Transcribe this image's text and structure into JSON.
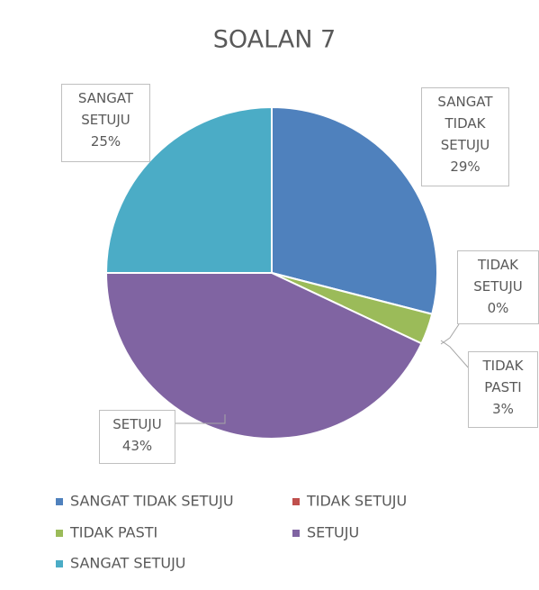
{
  "chart_data": {
    "type": "pie",
    "title": "SOALAN 7",
    "categories": [
      "SANGAT TIDAK SETUJU",
      "TIDAK SETUJU",
      "TIDAK PASTI",
      "SETUJU",
      "SANGAT SETUJU"
    ],
    "values": [
      29,
      0,
      3,
      43,
      25
    ],
    "value_labels": [
      "29%",
      "0%",
      "3%",
      "43%",
      "25%"
    ],
    "colors": [
      "#4f81bd",
      "#c0504d",
      "#9bbb59",
      "#8064a2",
      "#4bacc6"
    ]
  }
}
